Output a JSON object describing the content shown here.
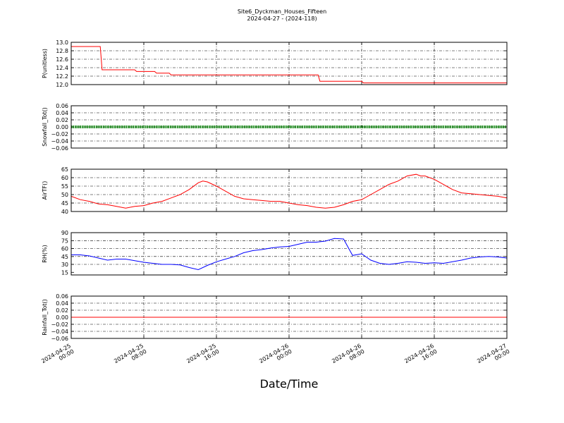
{
  "figure": {
    "title_line1": "Site6_Dyckman_Houses_Fifteen",
    "title_line2": "2024-04-27 - (2024-118)",
    "xlabel": "Date/Time"
  },
  "chart_data": [
    {
      "type": "line",
      "ylabel": "P(unitless)",
      "ylim": [
        12.0,
        13.0
      ],
      "yticks": [
        "12.0",
        "12.2",
        "12.4",
        "12.6",
        "12.8",
        "13.0"
      ],
      "xlim": [
        0,
        48
      ],
      "grid": true,
      "series": [
        {
          "color": "#ff0000",
          "x": [
            0,
            3.2,
            3.4,
            4.3,
            4.5,
            7.0,
            7.2,
            9.2,
            9.4,
            10.8,
            11.0,
            27.2,
            27.4,
            32.0,
            32.2,
            48.0
          ],
          "values": [
            12.9,
            12.9,
            12.35,
            12.35,
            12.35,
            12.35,
            12.31,
            12.31,
            12.27,
            12.27,
            12.23,
            12.23,
            12.08,
            12.08,
            12.04,
            12.04
          ]
        }
      ]
    },
    {
      "type": "line",
      "ylabel": "Snowfall_Tot()",
      "ylim": [
        -0.06,
        0.06
      ],
      "yticks": [
        "−0.06",
        "−0.04",
        "−0.02",
        "0.00",
        "0.02",
        "0.04",
        "0.06"
      ],
      "xlim": [
        0,
        48
      ],
      "grid": true,
      "series": [
        {
          "color": "#008000",
          "style": "dots",
          "x": [
            0,
            48
          ],
          "values": [
            0,
            0
          ]
        }
      ]
    },
    {
      "type": "line",
      "ylabel": "AirTF()",
      "ylim": [
        40,
        65
      ],
      "yticks": [
        "40",
        "45",
        "50",
        "55",
        "60",
        "65"
      ],
      "xlim": [
        0,
        48
      ],
      "grid": true,
      "series": [
        {
          "color": "#ff0000",
          "x": [
            0,
            1,
            2,
            3,
            4,
            5,
            6,
            7,
            8,
            9,
            10,
            11,
            12,
            13,
            14,
            14.5,
            15,
            16,
            17,
            18,
            19,
            20,
            21,
            22,
            23,
            24,
            25,
            26,
            27,
            28,
            29,
            30,
            31,
            32,
            33,
            34,
            35,
            36,
            37,
            38,
            38.5,
            39,
            40,
            41,
            42,
            43,
            44,
            45,
            46,
            47,
            48
          ],
          "values": [
            49,
            47,
            46,
            44.5,
            44,
            43,
            42,
            43,
            43.5,
            45,
            46,
            48,
            50,
            53,
            57,
            58,
            57.5,
            55,
            52,
            49,
            47.5,
            47,
            46.5,
            46,
            46,
            45,
            44,
            43.5,
            42.5,
            42,
            42.5,
            44,
            46,
            47,
            50,
            53,
            56,
            58,
            61,
            62,
            61,
            61,
            59,
            56,
            53,
            51,
            50.5,
            50,
            49.5,
            49,
            48
          ]
        }
      ]
    },
    {
      "type": "line",
      "ylabel": "RH(%)",
      "ylim": [
        10,
        90
      ],
      "yticks": [
        "15",
        "30",
        "45",
        "60",
        "75",
        "90"
      ],
      "xlim": [
        0,
        48
      ],
      "grid": true,
      "series": [
        {
          "color": "#0000ff",
          "x": [
            0,
            1,
            2,
            3,
            4,
            5,
            6,
            7,
            8,
            9,
            10,
            11,
            12,
            13,
            14,
            15,
            16,
            17,
            18,
            19,
            20,
            21,
            22,
            23,
            24,
            25,
            26,
            27,
            28,
            29,
            30,
            31,
            32,
            33,
            34,
            35,
            36,
            37,
            38,
            39,
            40,
            41,
            42,
            43,
            44,
            45,
            46,
            47,
            48
          ],
          "values": [
            48,
            48,
            46,
            42,
            38,
            40,
            40,
            37,
            34,
            32,
            30,
            30,
            29,
            24,
            20,
            28,
            35,
            40,
            45,
            52,
            56,
            58,
            61,
            63,
            64,
            68,
            72,
            72,
            74,
            79,
            78,
            47,
            50,
            38,
            32,
            30,
            32,
            35,
            34,
            32,
            33,
            32,
            35,
            38,
            42,
            44,
            45,
            44,
            42
          ]
        }
      ]
    },
    {
      "type": "line",
      "ylabel": "Rainfall_Tot()",
      "ylim": [
        -0.06,
        0.06
      ],
      "yticks": [
        "−0.06",
        "−0.04",
        "−0.02",
        "0.00",
        "0.02",
        "0.04",
        "0.06"
      ],
      "xlim": [
        0,
        48
      ],
      "grid": true,
      "series": [
        {
          "color": "#ff0000",
          "x": [
            0,
            48
          ],
          "values": [
            0,
            0
          ]
        }
      ]
    }
  ],
  "x_axis": {
    "tick_positions_hours": [
      0,
      8,
      16,
      24,
      32,
      40,
      48
    ],
    "tick_labels": [
      [
        "2024-04-25",
        "00:00"
      ],
      [
        "2024-04-25",
        "08:00"
      ],
      [
        "2024-04-25",
        "16:00"
      ],
      [
        "2024-04-26",
        "00:00"
      ],
      [
        "2024-04-26",
        "08:00"
      ],
      [
        "2024-04-26",
        "16:00"
      ],
      [
        "2024-04-27",
        "00:00"
      ]
    ]
  }
}
